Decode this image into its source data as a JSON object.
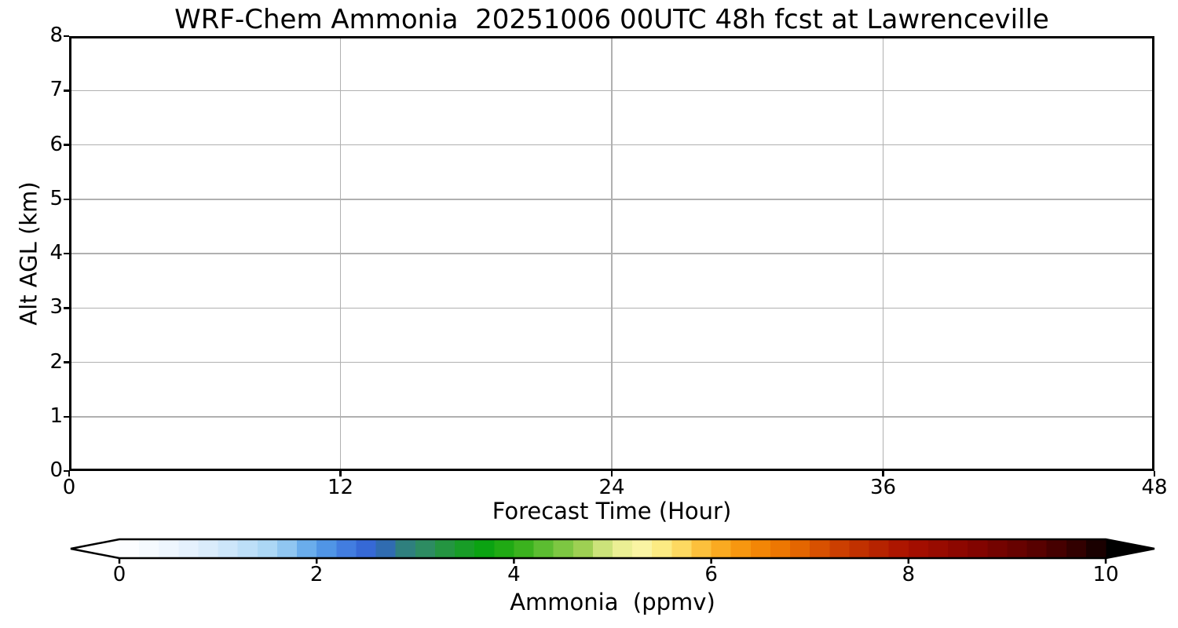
{
  "colors": {
    "background": "#ffffff",
    "frame": "#000000",
    "grid": "#b0b0b0",
    "text": "#000000"
  },
  "chart_data": {
    "type": "heatmap",
    "title": "WRF-Chem Ammonia  20251006 00UTC 48h fcst at Lawrenceville",
    "xlabel": "Forecast Time (Hour)",
    "ylabel": "Alt AGL (km)",
    "x_range": [
      0,
      48
    ],
    "y_range": [
      0,
      8
    ],
    "xticks": [
      0,
      12,
      24,
      36,
      48
    ],
    "yticks": [
      0,
      1,
      2,
      3,
      4,
      5,
      6,
      7,
      8
    ],
    "grid": true,
    "series": [],
    "field_note": "Plot area is entirely blank/white: all forecast ammonia values are below the lowest contour level, so no filled contours are drawn",
    "colorbar": {
      "label": "Ammonia  (ppmv)",
      "range": [
        0,
        10
      ],
      "ticks": [
        0,
        2,
        4,
        6,
        8,
        10
      ],
      "extend": "both",
      "under_color": "#ffffff",
      "over_color": "#000000",
      "n_levels": 50,
      "stops": [
        {
          "v": 0.0,
          "c": "#ffffff"
        },
        {
          "v": 0.4,
          "c": "#f2f8fe"
        },
        {
          "v": 0.8,
          "c": "#e0effc"
        },
        {
          "v": 1.2,
          "c": "#c6e3f9"
        },
        {
          "v": 1.6,
          "c": "#a3d3f4"
        },
        {
          "v": 2.0,
          "c": "#57a0e9"
        },
        {
          "v": 2.4,
          "c": "#3b72dd"
        },
        {
          "v": 2.6,
          "c": "#3060cf"
        },
        {
          "v": 2.85,
          "c": "#2f7d85"
        },
        {
          "v": 3.1,
          "c": "#2d8c62"
        },
        {
          "v": 3.4,
          "c": "#1f9a31"
        },
        {
          "v": 3.7,
          "c": "#0ba312"
        },
        {
          "v": 4.0,
          "c": "#2aad15"
        },
        {
          "v": 4.3,
          "c": "#5cbd31"
        },
        {
          "v": 4.7,
          "c": "#9ed053"
        },
        {
          "v": 5.0,
          "c": "#e3ec8d"
        },
        {
          "v": 5.3,
          "c": "#faf4a3"
        },
        {
          "v": 5.6,
          "c": "#fde673"
        },
        {
          "v": 6.0,
          "c": "#fbb32a"
        },
        {
          "v": 6.4,
          "c": "#f68d07"
        },
        {
          "v": 6.8,
          "c": "#ea7001"
        },
        {
          "v": 7.2,
          "c": "#d24601"
        },
        {
          "v": 7.6,
          "c": "#bb2a00"
        },
        {
          "v": 8.0,
          "c": "#a81000"
        },
        {
          "v": 8.6,
          "c": "#880500"
        },
        {
          "v": 9.2,
          "c": "#610100"
        },
        {
          "v": 9.6,
          "c": "#3d0000"
        },
        {
          "v": 10.0,
          "c": "#0f0000"
        }
      ]
    }
  }
}
